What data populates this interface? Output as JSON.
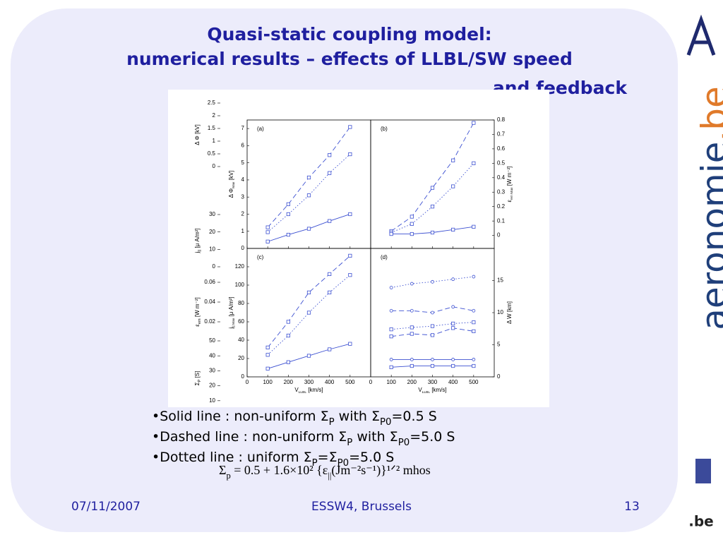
{
  "header": {
    "title_lines": [
      "Quasi-static coupling model:",
      "numerical results – effects of LLBL/SW speed",
      "and feedback"
    ]
  },
  "background_axes": [
    {
      "ylabel": "Δ Φ [kV]",
      "ylim": [
        0,
        2.5
      ],
      "yticks": [
        2.5,
        2,
        1.5,
        1,
        0.5,
        0
      ]
    },
    {
      "ylabel": [
        "j",
        "||",
        " [μ A/m²]"
      ],
      "ylim": [
        0,
        30
      ],
      "yticks": [
        30,
        20,
        10,
        0
      ]
    },
    {
      "ylabel": [
        "ε",
        "em",
        " [W m⁻²]"
      ],
      "ylim": [
        0,
        0.06
      ],
      "yticks": [
        0.06,
        0.04,
        0.02
      ]
    },
    {
      "ylabel": [
        "Σ",
        "P",
        " [S]"
      ],
      "ylim": [
        0,
        50
      ],
      "yticks": [
        50,
        40,
        30,
        20,
        10
      ]
    }
  ],
  "chart_data": [
    {
      "type": "line",
      "panel_label": "(a)",
      "ylabel": [
        "Δ Φ",
        "Max",
        " [kV]"
      ],
      "yaxis": "left",
      "x": [
        100,
        200,
        300,
        400,
        500
      ],
      "xlim": [
        0,
        600
      ],
      "xticks": [
        0,
        100,
        200,
        300,
        400,
        500
      ],
      "ylim": [
        0,
        7.5
      ],
      "yticks": [
        0,
        1,
        2,
        3,
        4,
        5,
        6,
        7
      ],
      "series": [
        {
          "style": "dashed",
          "marker": "square",
          "color": "#3b4fd1",
          "values": [
            1.23,
            2.58,
            4.14,
            5.45,
            7.09
          ]
        },
        {
          "style": "dotted",
          "marker": "square",
          "color": "#3b4fd1",
          "values": [
            0.95,
            2.0,
            3.1,
            4.4,
            5.5
          ]
        },
        {
          "style": "solid",
          "marker": "square",
          "color": "#3b4fd1",
          "values": [
            0.4,
            0.8,
            1.15,
            1.6,
            2.0
          ]
        }
      ]
    },
    {
      "type": "line",
      "panel_label": "(b)",
      "ylabel": [
        "ε",
        "em Max",
        " [W m⁻²]"
      ],
      "yaxis": "right",
      "x": [
        100,
        200,
        300,
        400,
        500
      ],
      "xlim": [
        0,
        600
      ],
      "xticks": [
        0,
        100,
        200,
        300,
        400,
        500
      ],
      "ylim": [
        -0.09,
        0.8
      ],
      "yticks": [
        0,
        0.1,
        0.2,
        0.3,
        0.4,
        0.5,
        0.6,
        0.7,
        0.8
      ],
      "series": [
        {
          "style": "dashed",
          "marker": "square",
          "color": "#3b4fd1",
          "values": [
            0.03,
            0.13,
            0.33,
            0.52,
            0.78
          ]
        },
        {
          "style": "dotted",
          "marker": "square",
          "color": "#3b4fd1",
          "values": [
            0.02,
            0.08,
            0.2,
            0.34,
            0.5
          ]
        },
        {
          "style": "solid",
          "marker": "square",
          "color": "#3b4fd1",
          "values": [
            0.01,
            0.01,
            0.02,
            0.04,
            0.06
          ]
        }
      ]
    },
    {
      "type": "line",
      "panel_label": "(c)",
      "ylabel": [
        "j",
        "|| Max",
        " [μ A/m²]"
      ],
      "yaxis": "left",
      "xlabel": [
        "V",
        "LLBL",
        " [km/s]"
      ],
      "x": [
        100,
        200,
        300,
        400,
        500
      ],
      "xlim": [
        0,
        600
      ],
      "xticks": [
        0,
        100,
        200,
        300,
        400,
        500
      ],
      "ylim": [
        0,
        140
      ],
      "yticks": [
        0,
        20,
        40,
        60,
        80,
        100,
        120
      ],
      "series": [
        {
          "style": "dashed",
          "marker": "square",
          "color": "#3b4fd1",
          "values": [
            32,
            60,
            92,
            112,
            132
          ]
        },
        {
          "style": "dotted",
          "marker": "square",
          "color": "#3b4fd1",
          "values": [
            24,
            45,
            70,
            92,
            111
          ]
        },
        {
          "style": "solid",
          "marker": "square",
          "color": "#3b4fd1",
          "values": [
            9,
            16,
            23,
            30,
            36
          ]
        }
      ]
    },
    {
      "type": "line",
      "panel_label": "(d)",
      "ylabel": [
        "Δ W [km]"
      ],
      "yaxis": "right",
      "xlabel": [
        "V",
        "LLBL",
        " [km/s]"
      ],
      "x": [
        100,
        200,
        300,
        400,
        500
      ],
      "xlim": [
        0,
        600
      ],
      "xticks": [
        0,
        100,
        200,
        300,
        400,
        500
      ],
      "ylim": [
        0,
        20
      ],
      "yticks": [
        0,
        5,
        10,
        15
      ],
      "series": [
        {
          "style": "dotted",
          "marker": "circle",
          "color": "#3b4fd1",
          "values": [
            13.9,
            14.5,
            14.8,
            15.2,
            15.6
          ]
        },
        {
          "style": "dashed",
          "marker": "circle",
          "color": "#3b4fd1",
          "values": [
            10.3,
            10.3,
            10.0,
            10.9,
            10.3
          ]
        },
        {
          "style": "dotted",
          "marker": "square",
          "color": "#3b4fd1",
          "values": [
            7.4,
            7.7,
            7.9,
            8.3,
            8.5
          ]
        },
        {
          "style": "dashed",
          "marker": "square",
          "color": "#3b4fd1",
          "values": [
            6.3,
            6.7,
            6.5,
            7.6,
            7.1
          ]
        },
        {
          "style": "solid",
          "marker": "circle",
          "color": "#3b4fd1",
          "values": [
            2.7,
            2.7,
            2.7,
            2.7,
            2.7
          ]
        },
        {
          "style": "solid",
          "marker": "square",
          "color": "#3b4fd1",
          "values": [
            1.5,
            1.7,
            1.7,
            1.7,
            1.7
          ]
        }
      ]
    }
  ],
  "bullets": [
    [
      "•Solid line    : non-uniform Σ",
      "P",
      " with Σ",
      "P0",
      "=0.5 S"
    ],
    [
      "•Dashed line : non-uniform Σ",
      "P",
      " with Σ",
      "P0",
      "=5.0 S"
    ],
    [
      "•Dotted line  : uniform Σ",
      "P",
      "=Σ",
      "P0",
      "=5.0 S"
    ]
  ],
  "formula": [
    "Σ",
    "p",
    " = 0.5 + 1.6×10² {ε",
    "||",
    "(Jm⁻²s⁻¹)}¹ᐟ² mhos"
  ],
  "footer": {
    "date": "07/11/2007",
    "venue": "ESSW4, Brussels",
    "page": "13"
  },
  "logo": {
    "main": "aeronomie",
    "suffix": ".be",
    "small": ".be"
  }
}
